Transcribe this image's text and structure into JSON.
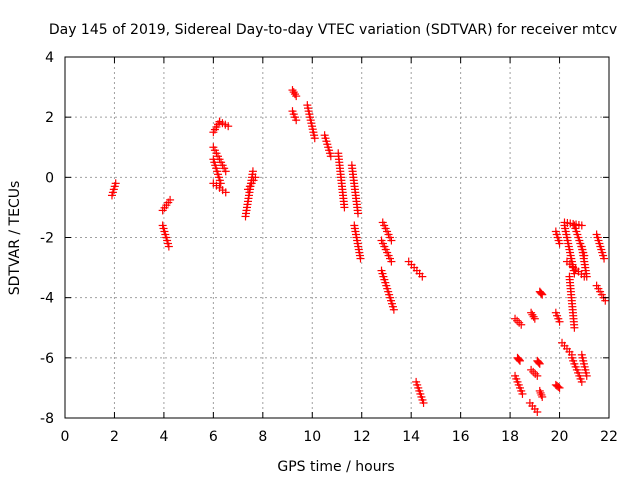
{
  "chart_data": {
    "type": "scatter",
    "title": "Day 145 of 2019, Sidereal Day-to-day VTEC variation (SDTVAR) for receiver mtcv",
    "xlabel": "GPS time / hours",
    "ylabel": "SDTVAR / TECUs",
    "xlim": [
      0,
      22
    ],
    "ylim": [
      -8,
      4
    ],
    "xticks": [
      "0",
      "2",
      "4",
      "6",
      "8",
      "10",
      "12",
      "14",
      "16",
      "18",
      "20",
      "22"
    ],
    "yticks": [
      "4",
      "2",
      "0",
      "-2",
      "-4",
      "-6",
      "-8"
    ],
    "xtick_values": [
      0,
      2,
      4,
      6,
      8,
      10,
      12,
      14,
      16,
      18,
      20,
      22
    ],
    "ytick_values": [
      4,
      2,
      0,
      -2,
      -4,
      -6,
      -8
    ],
    "grid": true,
    "marker": "plus",
    "color": "#ff0000",
    "segments": [
      {
        "x0": 1.9,
        "x1": 2.05,
        "y0": -0.6,
        "y1": -0.2
      },
      {
        "x0": 3.95,
        "x1": 4.25,
        "y0": -1.1,
        "y1": -0.75
      },
      {
        "x0": 3.95,
        "x1": 4.2,
        "y0": -1.6,
        "y1": -2.3
      },
      {
        "x0": 6.0,
        "x1": 6.25,
        "y0": 1.5,
        "y1": 1.85
      },
      {
        "x0": 6.25,
        "x1": 6.6,
        "y0": 1.85,
        "y1": 1.7
      },
      {
        "x0": 6.0,
        "x1": 6.5,
        "y0": 1.0,
        "y1": 0.2
      },
      {
        "x0": 6.0,
        "x1": 6.5,
        "y0": -0.2,
        "y1": -0.5
      },
      {
        "x0": 6.0,
        "x1": 6.3,
        "y0": 0.6,
        "y1": -0.2
      },
      {
        "x0": 7.3,
        "x1": 7.6,
        "y0": -1.3,
        "y1": 0.2
      },
      {
        "x0": 7.4,
        "x1": 7.7,
        "y0": -0.4,
        "y1": 0.0
      },
      {
        "x0": 9.2,
        "x1": 9.35,
        "y0": 2.9,
        "y1": 2.7
      },
      {
        "x0": 9.2,
        "x1": 9.35,
        "y0": 2.2,
        "y1": 1.9
      },
      {
        "x0": 9.8,
        "x1": 10.1,
        "y0": 2.4,
        "y1": 1.3
      },
      {
        "x0": 10.5,
        "x1": 10.75,
        "y0": 1.4,
        "y1": 0.7
      },
      {
        "x0": 11.05,
        "x1": 11.3,
        "y0": 0.8,
        "y1": -1.0
      },
      {
        "x0": 11.6,
        "x1": 11.85,
        "y0": 0.4,
        "y1": -1.2
      },
      {
        "x0": 11.7,
        "x1": 11.95,
        "y0": -1.6,
        "y1": -2.7
      },
      {
        "x0": 12.85,
        "x1": 13.2,
        "y0": -1.5,
        "y1": -2.1
      },
      {
        "x0": 12.8,
        "x1": 13.2,
        "y0": -2.1,
        "y1": -2.8
      },
      {
        "x0": 12.8,
        "x1": 13.3,
        "y0": -3.1,
        "y1": -4.4
      },
      {
        "x0": 13.9,
        "x1": 14.45,
        "y0": -2.8,
        "y1": -3.3
      },
      {
        "x0": 14.2,
        "x1": 14.5,
        "y0": -6.8,
        "y1": -7.5
      },
      {
        "x0": 18.2,
        "x1": 18.45,
        "y0": -4.7,
        "y1": -4.9
      },
      {
        "x0": 18.3,
        "x1": 18.4,
        "y0": -6.0,
        "y1": -6.1
      },
      {
        "x0": 18.2,
        "x1": 18.5,
        "y0": -6.6,
        "y1": -7.2
      },
      {
        "x0": 18.85,
        "x1": 19.0,
        "y0": -4.5,
        "y1": -4.7
      },
      {
        "x0": 18.85,
        "x1": 19.1,
        "y0": -6.4,
        "y1": -6.6
      },
      {
        "x0": 18.8,
        "x1": 19.1,
        "y0": -7.5,
        "y1": -7.8
      },
      {
        "x0": 19.2,
        "x1": 19.3,
        "y0": -3.8,
        "y1": -3.9
      },
      {
        "x0": 19.1,
        "x1": 19.2,
        "y0": -6.1,
        "y1": -6.2
      },
      {
        "x0": 19.2,
        "x1": 19.3,
        "y0": -7.1,
        "y1": -7.3
      },
      {
        "x0": 19.85,
        "x1": 20.0,
        "y0": -1.8,
        "y1": -2.2
      },
      {
        "x0": 19.85,
        "x1": 20.0,
        "y0": -4.5,
        "y1": -4.8
      },
      {
        "x0": 19.85,
        "x1": 20.0,
        "y0": -6.9,
        "y1": -7.0
      },
      {
        "x0": 20.2,
        "x1": 20.9,
        "y0": -1.5,
        "y1": -1.6
      },
      {
        "x0": 20.2,
        "x1": 20.6,
        "y0": -1.6,
        "y1": -3.2
      },
      {
        "x0": 20.6,
        "x1": 21.0,
        "y0": -1.6,
        "y1": -2.6
      },
      {
        "x0": 20.3,
        "x1": 21.0,
        "y0": -2.8,
        "y1": -3.3
      },
      {
        "x0": 20.9,
        "x1": 21.1,
        "y0": -2.3,
        "y1": -3.3
      },
      {
        "x0": 20.4,
        "x1": 20.6,
        "y0": -3.3,
        "y1": -5.0
      },
      {
        "x0": 20.1,
        "x1": 20.5,
        "y0": -5.5,
        "y1": -5.9
      },
      {
        "x0": 20.5,
        "x1": 20.9,
        "y0": -6.0,
        "y1": -6.8
      },
      {
        "x0": 20.9,
        "x1": 21.1,
        "y0": -5.9,
        "y1": -6.6
      },
      {
        "x0": 21.5,
        "x1": 21.8,
        "y0": -1.9,
        "y1": -2.7
      },
      {
        "x0": 21.5,
        "x1": 21.85,
        "y0": -3.6,
        "y1": -4.1
      }
    ]
  }
}
